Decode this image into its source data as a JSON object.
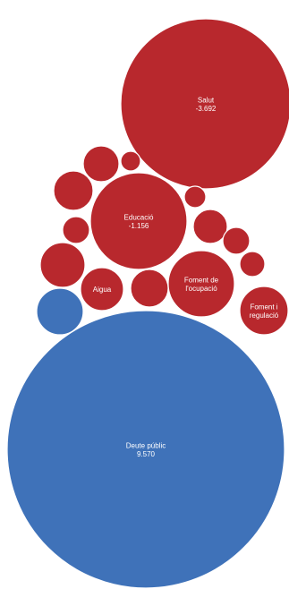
{
  "chart_data": {
    "type": "bubble",
    "colors": {
      "negative": "#b8282d",
      "positive": "#3f72b9"
    },
    "bubbles": [
      {
        "label_lines": [
          "Salut",
          "-3.692"
        ],
        "value": -3692,
        "color": "negative"
      },
      {
        "label_lines": [
          "Educació",
          "-1.156"
        ],
        "value": -1156,
        "color": "negative"
      },
      {
        "label_lines": [
          "Foment de",
          "l'ocupació"
        ],
        "color": "negative"
      },
      {
        "label_lines": [
          "Foment i",
          "regulació"
        ],
        "color": "negative"
      },
      {
        "label_lines": [
          "Aigua"
        ],
        "color": "negative"
      },
      {
        "label_lines": [
          "Deute públic",
          "9.570"
        ],
        "value": 9570,
        "color": "positive"
      },
      {
        "label_lines": [],
        "color": "negative"
      },
      {
        "label_lines": [],
        "color": "negative"
      },
      {
        "label_lines": [],
        "color": "negative"
      },
      {
        "label_lines": [],
        "color": "negative"
      },
      {
        "label_lines": [],
        "color": "negative"
      },
      {
        "label_lines": [],
        "color": "negative"
      },
      {
        "label_lines": [],
        "color": "negative"
      },
      {
        "label_lines": [],
        "color": "negative"
      },
      {
        "label_lines": [],
        "color": "negative"
      },
      {
        "label_lines": [],
        "color": "negative"
      },
      {
        "label_lines": [],
        "color": "positive"
      }
    ]
  }
}
